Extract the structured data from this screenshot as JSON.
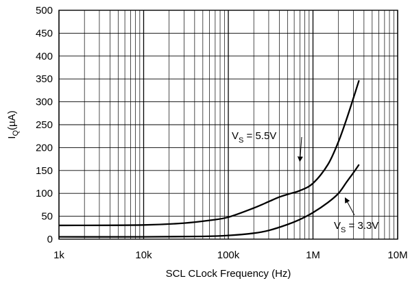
{
  "chart_data": {
    "type": "line",
    "xlabel": "SCL CLock Frequency (Hz)",
    "ylabel": {
      "main": "I",
      "sub": "Q",
      "tail": "(µA)"
    },
    "x_scale": "log",
    "xlim": [
      1000,
      10000000
    ],
    "ylim": [
      0,
      500
    ],
    "grid": true,
    "x_ticks": [
      {
        "value": 1000,
        "label": "1k"
      },
      {
        "value": 10000,
        "label": "10k"
      },
      {
        "value": 100000,
        "label": "100k"
      },
      {
        "value": 1000000,
        "label": "1M"
      },
      {
        "value": 10000000,
        "label": "10M"
      }
    ],
    "y_ticks": [
      {
        "value": 0,
        "label": "0"
      },
      {
        "value": 50,
        "label": "50"
      },
      {
        "value": 100,
        "label": "100"
      },
      {
        "value": 150,
        "label": "150"
      },
      {
        "value": 200,
        "label": "200"
      },
      {
        "value": 250,
        "label": "250"
      },
      {
        "value": 300,
        "label": "300"
      },
      {
        "value": 350,
        "label": "350"
      },
      {
        "value": 400,
        "label": "400"
      },
      {
        "value": 450,
        "label": "450"
      },
      {
        "value": 500,
        "label": "500"
      }
    ],
    "series": [
      {
        "name": "V_S = 5.5V",
        "label_main": "V",
        "label_sub": "S",
        "label_tail": " = 5.5V",
        "color": "#000000",
        "x": [
          1000,
          10000,
          30000,
          60000,
          100000,
          200000,
          300000,
          400000,
          550000,
          700000,
          1000000,
          1500000,
          2000000,
          2500000,
          3000000,
          3500000
        ],
        "y": [
          30,
          31,
          35,
          41,
          48,
          68,
          82,
          92,
          100,
          106,
          122,
          163,
          213,
          263,
          308,
          347
        ]
      },
      {
        "name": "V_S = 3.3V",
        "label_main": "V",
        "label_sub": "S",
        "label_tail": " = 3.3V",
        "color": "#000000",
        "x": [
          1000,
          10000,
          50000,
          100000,
          200000,
          300000,
          500000,
          700000,
          1000000,
          1500000,
          2000000,
          2500000,
          3000000,
          3500000
        ],
        "y": [
          5,
          5,
          6,
          8,
          13,
          19,
          32,
          43,
          58,
          80,
          100,
          125,
          145,
          163
        ]
      }
    ]
  }
}
